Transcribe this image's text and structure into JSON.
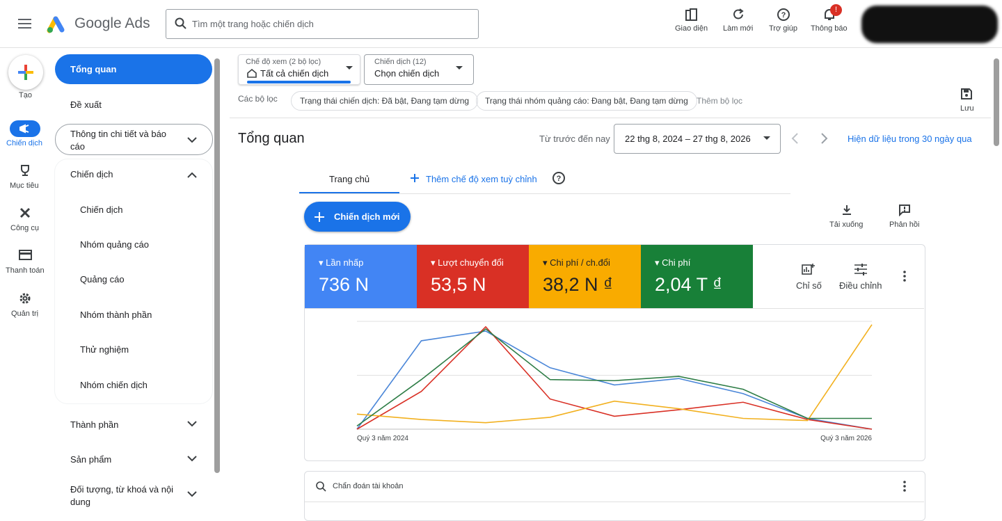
{
  "header": {
    "app_name": "Google Ads",
    "search_placeholder": "Tìm một trang hoặc chiến dịch",
    "actions": [
      "Giao diện",
      "Làm mới",
      "Trợ giúp",
      "Thông báo"
    ],
    "notification_badge": "!"
  },
  "rail": [
    "Tạo",
    "Chiến dịch",
    "Mục tiêu",
    "Công cụ",
    "Thanh toán",
    "Quản trị"
  ],
  "nav": {
    "top": [
      "Tổng quan",
      "Đề xuất",
      "Thông tin chi tiết và báo cáo"
    ],
    "campaigns": "Chiến dịch",
    "sub": [
      "Chiến dịch",
      "Nhóm quảng cáo",
      "Quảng cáo",
      "Nhóm thành phần",
      "Thử nghiệm",
      "Nhóm chiến dịch"
    ],
    "bottom": [
      "Thành phần",
      "Sản phẩm",
      "Đối tượng, từ khoá và nội dung"
    ]
  },
  "filters": {
    "view_label": "Chế độ xem (2 bộ lọc)",
    "view_value": "Tất cả chiến dịch",
    "campaign_label": "Chiến dịch (12)",
    "campaign_value": "Chọn chiến dịch",
    "filters_label": "Các bộ lọc",
    "chips": [
      "Trạng thái chiến dịch: Đã bật, Đang tạm dừng",
      "Trạng thái nhóm quảng cáo: Đang bật, Đang tạm dừng"
    ],
    "add_filter": "Thêm bộ lọc",
    "save": "Lưu"
  },
  "page": {
    "title": "Tổng quan",
    "date_label": "Từ trước đến nay",
    "date_range": "22 thg 8, 2024 – 27 thg 8, 2026",
    "recent": "Hiện dữ liệu trong 30 ngày qua",
    "tabs": [
      "Trang chủ",
      "Thêm chế độ xem tuỳ chỉnh"
    ],
    "new_campaign": "Chiến dịch mới",
    "download": "Tải xuống",
    "feedback": "Phản hồi",
    "metrics": "Chỉ số",
    "adjust": "Điều chỉnh",
    "diagnostics": "Chẩn đoán tài khoản"
  },
  "scorecards": [
    "736 N",
    "53,5 N",
    "38,2 N ₫",
    "2,04 T ₫"
  ],
  "chart_data": {
    "type": "line",
    "x": [
      "Quý 3 năm 2024",
      null,
      null,
      null,
      null,
      null,
      null,
      null,
      "Quý 3 năm 2026"
    ],
    "ylim": [
      0,
      100
    ],
    "series": [
      {
        "name": "Lần nhấp",
        "color": "#4a86d8",
        "values": [
          0,
          82,
          91,
          57,
          41,
          47,
          33,
          10,
          0
        ]
      },
      {
        "name": "Lượt chuyển đổi",
        "color": "#d93025",
        "values": [
          0,
          35,
          95,
          28,
          12,
          18,
          25,
          9,
          0
        ]
      },
      {
        "name": "Chi phí / ch.đổi",
        "color": "#f2b01e",
        "values": [
          14,
          9,
          6,
          11,
          26,
          19,
          10,
          8,
          97
        ]
      },
      {
        "name": "Chi phí",
        "color": "#2e7d46",
        "values": [
          3,
          46,
          93,
          46,
          45,
          49,
          37,
          10,
          10
        ]
      }
    ]
  }
}
